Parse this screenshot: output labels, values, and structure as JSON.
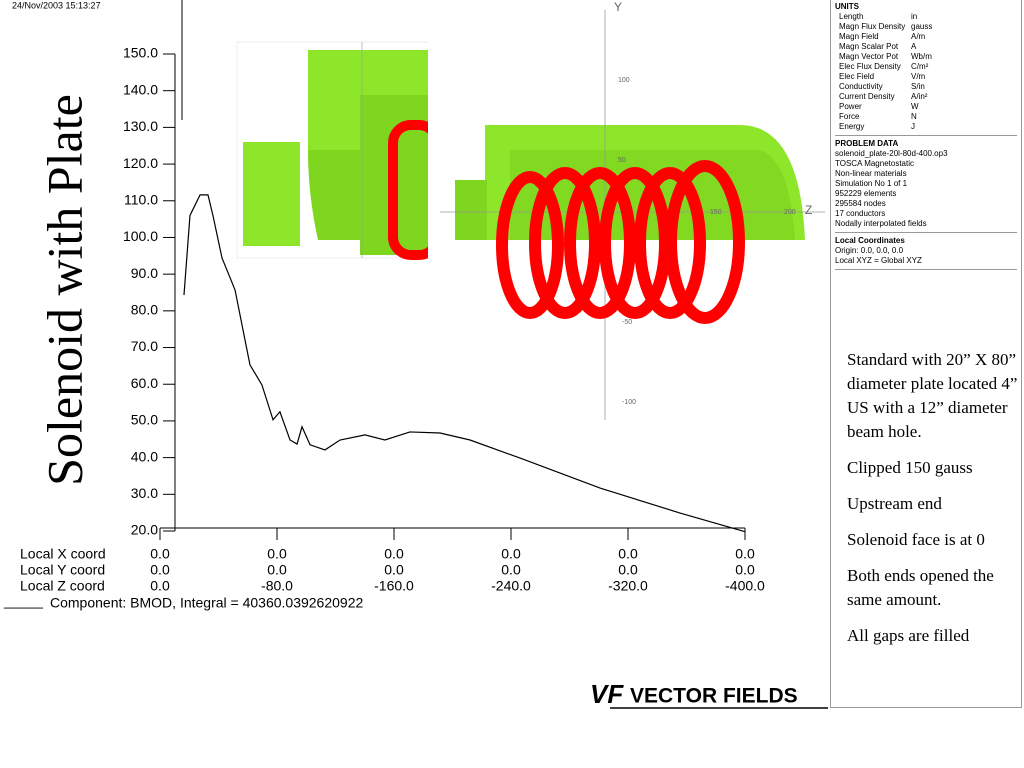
{
  "timestamp": "24/Nov/2003 15:13:27",
  "title": "Solenoid with Plate",
  "chart_data": {
    "type": "line",
    "x": [
      -16.4,
      -20.5,
      -27.4,
      -32.8,
      -36.2,
      -42.4,
      -51.3,
      -61.5,
      -69.7,
      -77.3,
      -82,
      -88.9,
      -93.7,
      -97.1,
      -102.6,
      -112.8,
      -123.1,
      -140.2,
      -153.8,
      -170.9,
      -191.5,
      -212,
      -246,
      -300.9,
      -355.6,
      -400
    ],
    "series": [
      {
        "name": "Component: BMOD, Integral = 40360.0392620922",
        "color": "#000000",
        "values": [
          84.3,
          106,
          111.6,
          111.6,
          106,
          94.4,
          85.7,
          65.3,
          59.8,
          50.3,
          52.5,
          44.8,
          43.7,
          48.4,
          43.5,
          42.1,
          44.8,
          46.2,
          44.8,
          47,
          46.7,
          44.8,
          39.9,
          31.7,
          24.9,
          19.8
        ]
      }
    ],
    "xlim": [
      0,
      -400
    ],
    "xticks": [
      {
        "value": 0,
        "label": "0.0"
      },
      {
        "value": -80,
        "label": "-80.0"
      },
      {
        "value": -160,
        "label": "-160.0"
      },
      {
        "value": -240,
        "label": "-240.0"
      },
      {
        "value": -320,
        "label": "-320.0"
      },
      {
        "value": -400,
        "label": "-400.0"
      }
    ],
    "ylim": [
      20,
      150
    ],
    "yticks": [
      {
        "value": 20,
        "label": "20.0"
      },
      {
        "value": 30,
        "label": "30.0"
      },
      {
        "value": 40,
        "label": "40.0"
      },
      {
        "value": 50,
        "label": "50.0"
      },
      {
        "value": 60,
        "label": "60.0"
      },
      {
        "value": 70,
        "label": "70.0"
      },
      {
        "value": 80,
        "label": "80.0"
      },
      {
        "value": 90,
        "label": "90.0"
      },
      {
        "value": 100,
        "label": "100.0"
      },
      {
        "value": 110,
        "label": "110.0"
      },
      {
        "value": 120,
        "label": "120.0"
      },
      {
        "value": 130,
        "label": "130.0"
      },
      {
        "value": 140,
        "label": "140.0"
      },
      {
        "value": 150,
        "label": "150.0"
      }
    ],
    "row_labels": [
      "Local X coord",
      "Local Y coord",
      "Local Z coord"
    ],
    "x_coord_row": [
      "0.0",
      "0.0",
      "0.0",
      "0.0",
      "0.0",
      "0.0"
    ],
    "y_coord_row": [
      "0.0",
      "0.0",
      "0.0",
      "0.0",
      "0.0",
      "0.0"
    ],
    "legend_line": "_____"
  },
  "render_axis_labels": [
    "Y",
    "Z",
    "100",
    "50",
    "-50",
    "-100",
    "150",
    "200"
  ],
  "panel": {
    "units": {
      "title": "UNITS",
      "rows": [
        [
          "Length",
          "in"
        ],
        [
          "Magn Flux Density",
          "gauss"
        ],
        [
          "Magn Field",
          "A/m"
        ],
        [
          "Magn Scalar Pot",
          "A"
        ],
        [
          "Magn Vector Pot",
          "Wb/m"
        ],
        [
          "Elec Flux Density",
          "C/m²"
        ],
        [
          "Elec Field",
          "V/m"
        ],
        [
          "Conductivity",
          "S/in"
        ],
        [
          "Current Density",
          "A/in²"
        ],
        [
          "Power",
          "W"
        ],
        [
          "Force",
          "N"
        ],
        [
          "Energy",
          "J"
        ]
      ]
    },
    "problem": {
      "title": "PROBLEM DATA",
      "lines": [
        "solenoid_plate-20l-80d-400.op3",
        "TOSCA Magnetostatic",
        "Non-linear materials",
        "Simulation No 1 of 1",
        "952229 elements",
        "295584 nodes",
        "17 conductors",
        "Nodally interpolated fields"
      ]
    },
    "coords": {
      "title": "Local Coordinates",
      "lines": [
        "Origin: 0.0, 0.0, 0.0",
        "Local XYZ = Global XYZ"
      ]
    }
  },
  "notes": [
    "Standard with 20” X 80” diameter plate located 4” US with a 12” diameter beam hole.",
    "Clipped 150 gauss",
    "Upstream end",
    "Solenoid face is at 0",
    "Both ends opened the same amount.",
    "All gaps are filled"
  ],
  "logo": {
    "mark": "VF",
    "text": "VECTOR FIELDS"
  }
}
